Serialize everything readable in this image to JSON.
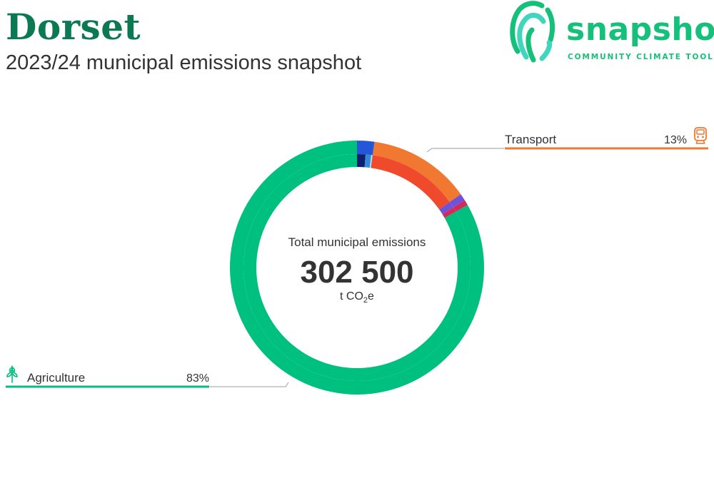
{
  "header": {
    "title": "Dorset",
    "subtitle": "2023/24 municipal emissions snapshot"
  },
  "logo": {
    "word": "snapshot",
    "tagline": "COMMUNITY CLIMATE TOOL"
  },
  "chart_data": {
    "type": "donut",
    "center": {
      "label": "Total municipal emissions",
      "value": "302 500",
      "unit_prefix": "t CO",
      "unit_sub": "2",
      "unit_suffix": "e"
    },
    "segments": [
      {
        "name": "Agriculture",
        "percent_label": "83%",
        "share": 0.832,
        "color": "#00c07f",
        "labeled": true,
        "icon": "wheat-icon"
      },
      {
        "name": "Transport",
        "percent_label": "13%",
        "share": 0.13,
        "color": "#f07830",
        "labeled": true,
        "icon": "train-icon"
      }
    ],
    "outer_slices": [
      {
        "share": 0.832,
        "color": "#00c07f"
      },
      {
        "share": 0.022,
        "color": "#2456d8"
      },
      {
        "share": 0.13,
        "color": "#f07830"
      },
      {
        "share": 0.009,
        "color": "#7052d8"
      },
      {
        "share": 0.007,
        "color": "#d02c5a"
      }
    ],
    "inner_slices": [
      {
        "share": 0.832,
        "color": "#00c07f"
      },
      {
        "share": 0.012,
        "color": "#0f1f6e"
      },
      {
        "share": 0.008,
        "color": "#2f8ad8"
      },
      {
        "share": 0.002,
        "color": "#bcd8f2"
      },
      {
        "share": 0.13,
        "color": "#f04a2c"
      },
      {
        "share": 0.009,
        "color": "#7052d8"
      },
      {
        "share": 0.007,
        "color": "#d02c5a"
      }
    ],
    "colors": {
      "agriculture": "#00c07f",
      "transport": "#f07830",
      "leader": "#9e9e9e"
    }
  }
}
